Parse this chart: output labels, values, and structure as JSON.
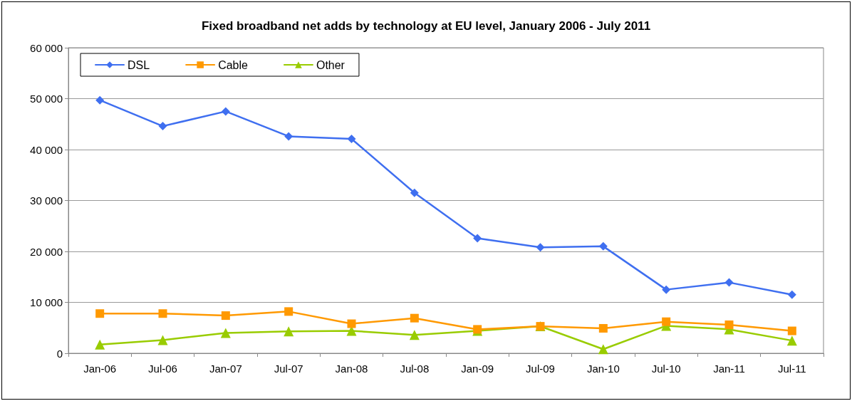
{
  "chart_data": {
    "type": "line",
    "title": "Fixed broadband net adds by technology at EU level, January 2006 - July 2011",
    "categories": [
      "Jan-06",
      "Jul-06",
      "Jan-07",
      "Jul-07",
      "Jan-08",
      "Jul-08",
      "Jan-09",
      "Jul-09",
      "Jan-10",
      "Jul-10",
      "Jan-11",
      "Jul-11"
    ],
    "series": [
      {
        "name": "DSL",
        "color": "#3f6ff0",
        "marker": "diamond",
        "values": [
          49700,
          44600,
          47500,
          42600,
          42100,
          31500,
          22600,
          20800,
          21000,
          12500,
          13900,
          11500
        ]
      },
      {
        "name": "Cable",
        "color": "#ff9900",
        "marker": "square",
        "values": [
          7800,
          7800,
          7400,
          8200,
          5800,
          6900,
          4700,
          5300,
          4900,
          6200,
          5600,
          4400
        ]
      },
      {
        "name": "Other",
        "color": "#99cc00",
        "marker": "triangle",
        "values": [
          1700,
          2600,
          4000,
          4300,
          4400,
          3600,
          4400,
          5300,
          800,
          5400,
          4700,
          2500
        ]
      }
    ],
    "ylim": [
      0,
      60000
    ],
    "yticks": [
      {
        "value": 0,
        "label": "0"
      },
      {
        "value": 10000,
        "label": "10 000"
      },
      {
        "value": 20000,
        "label": "20 000"
      },
      {
        "value": 30000,
        "label": "30 000"
      },
      {
        "value": 40000,
        "label": "40 000"
      },
      {
        "value": 50000,
        "label": "50 000"
      },
      {
        "value": 60000,
        "label": "60 000"
      }
    ],
    "grid": "y",
    "legend": "top left",
    "line_style": "solid"
  }
}
